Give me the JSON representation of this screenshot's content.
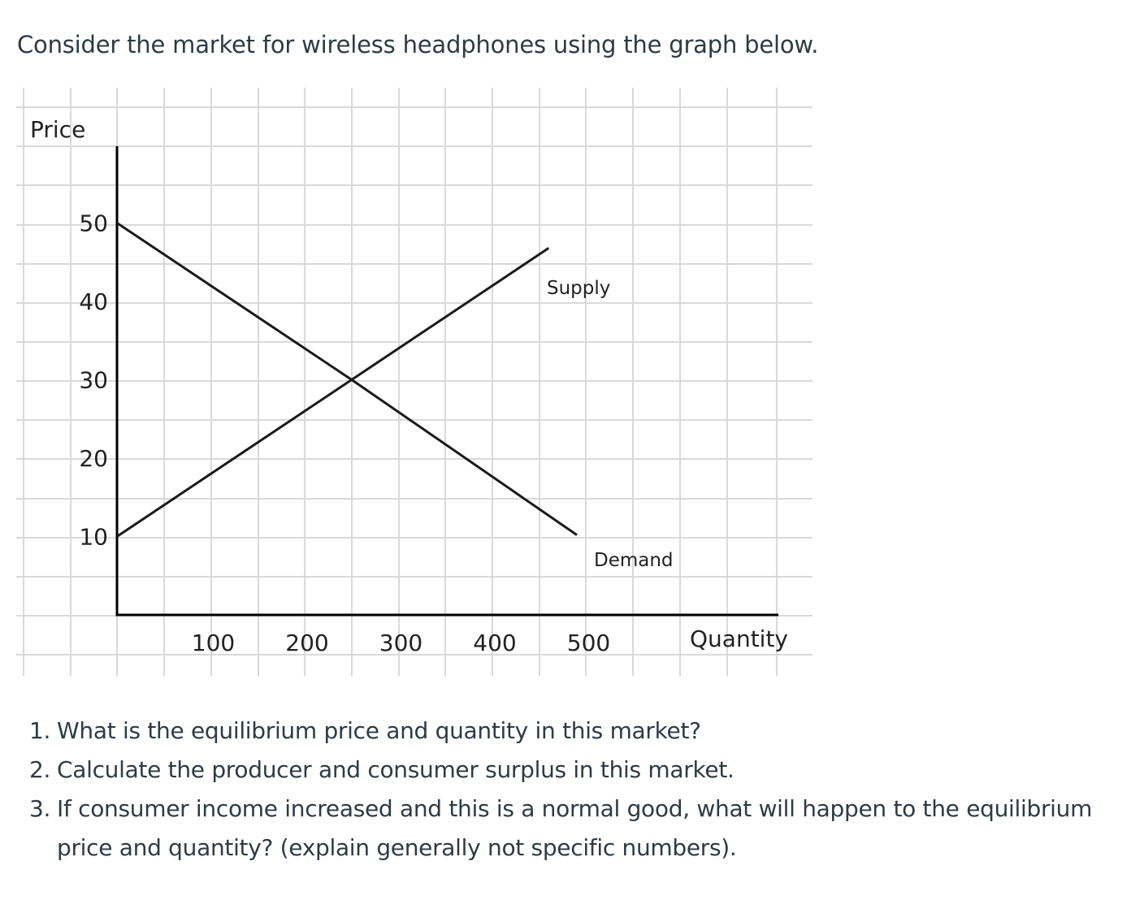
{
  "prompt": {
    "intro": "Consider the market for wireless headphones using the graph below."
  },
  "chart_data": {
    "type": "line",
    "title": "",
    "xlabel": "Quantity",
    "ylabel": "Price",
    "xlim": [
      0,
      700
    ],
    "ylim": [
      0,
      60
    ],
    "x_ticks": [
      100,
      200,
      300,
      400,
      500
    ],
    "x_tick_labels": [
      "100",
      "200",
      "300",
      "400",
      "500"
    ],
    "y_ticks": [
      10,
      20,
      30,
      40,
      50
    ],
    "y_tick_labels": [
      "10",
      "20",
      "30",
      "40",
      "50"
    ],
    "grid": true,
    "series": [
      {
        "name": "Supply",
        "x": [
          0,
          250,
          460
        ],
        "y": [
          10,
          30,
          46.8
        ]
      },
      {
        "name": "Demand",
        "x": [
          0,
          250,
          490
        ],
        "y": [
          50,
          30,
          10.2
        ]
      }
    ]
  },
  "questions": [
    {
      "number": "1.",
      "lines": [
        "What is the equilibrium price and quantity in this market?"
      ]
    },
    {
      "number": "2.",
      "lines": [
        "Calculate the producer and consumer surplus in this market."
      ]
    },
    {
      "number": "3.",
      "lines": [
        "If consumer income increased and this is a normal good, what will happen to the equilibrium",
        "price and quantity? (explain generally not specific numbers)."
      ]
    }
  ]
}
